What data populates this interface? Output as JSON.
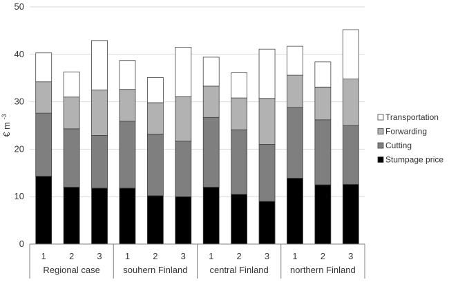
{
  "chart_data": {
    "type": "bar",
    "stacked": true,
    "ylabel": "€ m",
    "ylabel_superscript": "-3",
    "ylim": [
      0,
      50
    ],
    "yticks": [
      0,
      10,
      20,
      30,
      40,
      50
    ],
    "grid": true,
    "legend_position": "right",
    "groups": [
      {
        "label": "Regional case",
        "categories": [
          "1",
          "2",
          "3"
        ]
      },
      {
        "label": "souhern Finland",
        "categories": [
          "1",
          "2",
          "3"
        ]
      },
      {
        "label": "central Finland",
        "categories": [
          "1",
          "2",
          "3"
        ]
      },
      {
        "label": "northern Finland",
        "categories": [
          "1",
          "2",
          "3"
        ]
      }
    ],
    "series": [
      {
        "name": "Stumpage price",
        "color": "#000000",
        "values": [
          14.3,
          12.0,
          11.8,
          11.8,
          10.2,
          10.0,
          12.0,
          10.5,
          9.0,
          13.9,
          12.5,
          12.6
        ]
      },
      {
        "name": "Cutting",
        "color": "#7f7f7f",
        "values": [
          13.3,
          12.3,
          11.1,
          14.1,
          13.0,
          11.7,
          14.7,
          13.6,
          12.0,
          14.9,
          13.7,
          12.4
        ]
      },
      {
        "name": "Forwarding",
        "color": "#b2b2b2",
        "values": [
          6.6,
          6.7,
          9.6,
          6.7,
          6.6,
          9.4,
          6.6,
          6.7,
          9.7,
          6.8,
          6.9,
          9.8
        ]
      },
      {
        "name": "Transportation",
        "color": "#ffffff",
        "values": [
          6.1,
          5.3,
          10.4,
          6.1,
          5.3,
          10.4,
          6.1,
          5.3,
          10.4,
          6.1,
          5.3,
          10.4
        ]
      }
    ]
  }
}
